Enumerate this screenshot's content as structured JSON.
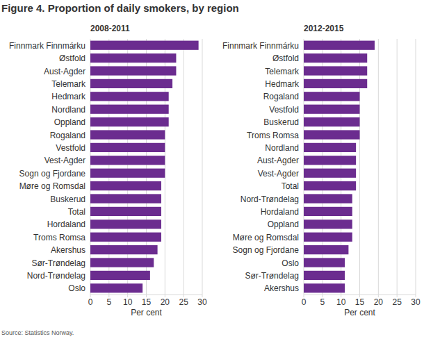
{
  "title": "Figure 4. Proportion of daily smokers, by region",
  "source": "Source: Statistics Norway.",
  "chart_data": [
    {
      "type": "bar",
      "orientation": "horizontal",
      "title": "2008-2011",
      "x_label": "Per cent",
      "categories": [
        "Finnmark Finnmárku",
        "Østfold",
        "Aust-Agder",
        "Telemark",
        "Hedmark",
        "Nordland",
        "Oppland",
        "Rogaland",
        "Vestfold",
        "Vest-Agder",
        "Sogn og Fjordane",
        "Møre og Romsdal",
        "Buskerud",
        "Total",
        "Hordaland",
        "Troms Romsa",
        "Akershus",
        "Sør-Trøndelag",
        "Nord-Trøndelag",
        "Oslo"
      ],
      "values": [
        29,
        23,
        23,
        22,
        21,
        21,
        21,
        20,
        20,
        20,
        20,
        19,
        19,
        19,
        19,
        19,
        18,
        17,
        16,
        14
      ],
      "color": "#6b2c8f",
      "xlim": [
        0,
        30
      ],
      "xticks": [
        0,
        5,
        10,
        15,
        20,
        25,
        30
      ],
      "grid": true
    },
    {
      "type": "bar",
      "orientation": "horizontal",
      "title": "2012-2015",
      "x_label": "Per cent",
      "categories": [
        "Finnmark Finnmárku",
        "Østfold",
        "Telemark",
        "Hedmark",
        "Rogaland",
        "Vestfold",
        "Buskerud",
        "Troms Romsa",
        "Nordland",
        "Aust-Agder",
        "Vest-Agder",
        "Total",
        "Nord-Trøndelag",
        "Hordaland",
        "Oppland",
        "Møre og Romsdal",
        "Sogn og Fjordane",
        "Oslo",
        "Sør-Trøndelag",
        "Akershus"
      ],
      "values": [
        19,
        17,
        17,
        17,
        15,
        15,
        15,
        15,
        14,
        14,
        14,
        14,
        13,
        13,
        13,
        13,
        12,
        11,
        11,
        11
      ],
      "color": "#6b2c8f",
      "xlim": [
        0,
        30
      ],
      "xticks": [
        0,
        5,
        10,
        15,
        20,
        25,
        30
      ],
      "grid": true
    }
  ]
}
